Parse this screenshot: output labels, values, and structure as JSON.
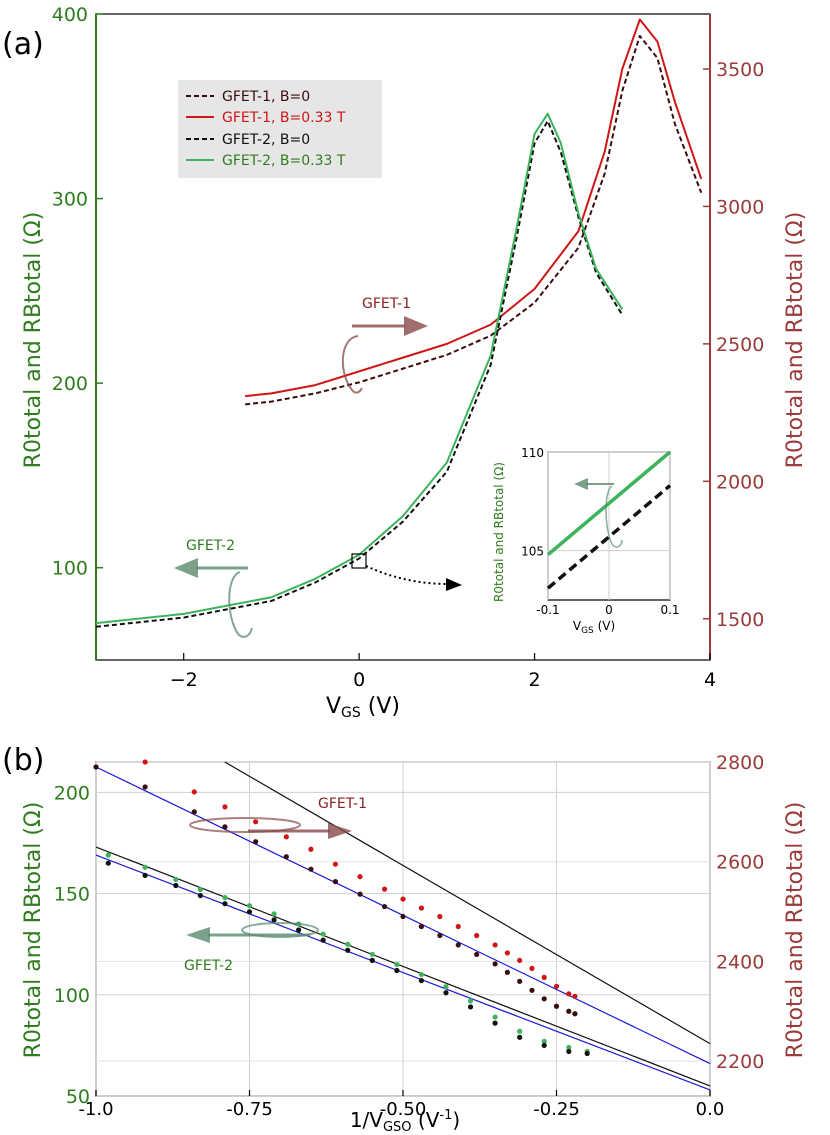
{
  "colors": {
    "green_axis": "#2f7d1f",
    "maroon_axis": "#9b3b3b",
    "gfet1_b0": "#3a0d0d",
    "gfet1_b033": "#d01515",
    "gfet2_b0": "#111111",
    "gfet2_b033": "#3cb35c",
    "fit_black": "#111111",
    "fit_blue": "#1a1ad6",
    "arrow_maroon": "#8a4a4a",
    "arrow_green": "#5a8a6e"
  },
  "chart_data": [
    {
      "panel_label": "(a)",
      "type": "line",
      "xlabel_main": "V",
      "xlabel_sub": "GS",
      "xlabel_unit": " (V)",
      "xlim": [
        -3,
        4
      ],
      "xticks": [
        -2,
        0,
        2,
        4
      ],
      "xtick_labels": [
        "−2",
        "0",
        "2",
        "4"
      ],
      "y_left": {
        "lim": [
          50,
          400
        ],
        "ticks": [
          100,
          200,
          300,
          400
        ],
        "tick_labels": [
          "100",
          "200",
          "300",
          "400"
        ]
      },
      "y_right": {
        "lim": [
          1350,
          3700
        ],
        "ticks": [
          1500,
          2000,
          2500,
          3000,
          3500
        ],
        "tick_labels": [
          "1500",
          "2000",
          "2500",
          "3000",
          "3500"
        ]
      },
      "ylabel_left": "R0total and RBtotal (Ω)",
      "ylabel_right": "R0total and RBtotal (Ω)",
      "legend": [
        {
          "label": "GFET-1,  B=0",
          "style": "dashed",
          "color": "#3a0d0d"
        },
        {
          "label": "GFET-1,  B=0.33 T",
          "style": "solid",
          "color": "#d01515"
        },
        {
          "label": "GFET-2,  B=0",
          "style": "dashed",
          "color": "#111111"
        },
        {
          "label": "GFET-2,  B=0.33 T",
          "style": "solid",
          "color": "#3cb35c"
        }
      ],
      "series": [
        {
          "name": "GFET-1, B=0",
          "axis": "right",
          "style": "dashed",
          "color": "#3a0d0d",
          "x": [
            -1.3,
            -1.0,
            -0.5,
            0,
            0.5,
            1.0,
            1.5,
            2.0,
            2.5,
            2.8,
            3.0,
            3.2,
            3.4,
            3.6,
            3.9
          ],
          "y": [
            2280,
            2290,
            2320,
            2360,
            2410,
            2460,
            2530,
            2650,
            2850,
            3120,
            3420,
            3620,
            3540,
            3300,
            3050
          ]
        },
        {
          "name": "GFET-1, B=0.33 T",
          "axis": "right",
          "style": "solid",
          "color": "#d01515",
          "x": [
            -1.3,
            -1.0,
            -0.5,
            0,
            0.5,
            1.0,
            1.5,
            2.0,
            2.5,
            2.8,
            3.0,
            3.2,
            3.4,
            3.6,
            3.9
          ],
          "y": [
            2310,
            2320,
            2350,
            2400,
            2450,
            2500,
            2570,
            2700,
            2910,
            3200,
            3500,
            3680,
            3600,
            3380,
            3100
          ]
        },
        {
          "name": "GFET-2, B=0",
          "axis": "left",
          "style": "dashed",
          "color": "#111111",
          "x": [
            -3.0,
            -2.0,
            -1.0,
            -0.5,
            0,
            0.5,
            1.0,
            1.5,
            1.8,
            2.0,
            2.15,
            2.3,
            2.5,
            2.7,
            3.0
          ],
          "y": [
            68,
            73,
            82,
            92,
            105,
            125,
            152,
            210,
            280,
            330,
            342,
            325,
            290,
            260,
            237
          ]
        },
        {
          "name": "GFET-2, B=0.33 T",
          "axis": "left",
          "style": "solid",
          "color": "#3cb35c",
          "x": [
            -3.0,
            -2.0,
            -1.0,
            -0.5,
            0,
            0.5,
            1.0,
            1.5,
            1.8,
            2.0,
            2.15,
            2.3,
            2.5,
            2.7,
            3.0
          ],
          "y": [
            70,
            75,
            84,
            94,
            107,
            128,
            157,
            215,
            285,
            335,
            346,
            330,
            292,
            262,
            240
          ]
        }
      ],
      "annotations": {
        "gfet1_label": "GFET-1",
        "gfet2_label": "GFET-2"
      },
      "inset": {
        "xlim": [
          -0.1,
          0.1
        ],
        "xticks": [
          -0.1,
          0,
          0.1
        ],
        "xtick_labels": [
          "-0.1",
          "0",
          "0.1"
        ],
        "ylim": [
          102.5,
          110
        ],
        "yticks": [
          105,
          110
        ],
        "ytick_labels": [
          "105",
          "110"
        ],
        "xlabel_main": "V",
        "xlabel_sub": "GS",
        "xlabel_unit": " (V)",
        "ylabel": "R0total and RBtotal (Ω)",
        "series": [
          {
            "name": "GFET-2, B=0.33 T",
            "style": "solid",
            "color": "#3cb35c",
            "x": [
              -0.1,
              0.1
            ],
            "y": [
              104.8,
              110.0
            ]
          },
          {
            "name": "GFET-2, B=0",
            "style": "dashed",
            "color": "#111111",
            "x": [
              -0.1,
              0.1
            ],
            "y": [
              103.1,
              108.3
            ]
          }
        ]
      }
    },
    {
      "panel_label": "(b)",
      "type": "scatter",
      "xlabel_main": "1/V",
      "xlabel_sub": "GSO",
      "xlabel_unit": " (V",
      "xlabel_sup": "-1",
      "xlabel_end": ")",
      "xlim": [
        -1.0,
        0.0
      ],
      "xticks": [
        -1.0,
        -0.75,
        -0.5,
        -0.25,
        0.0
      ],
      "xtick_labels": [
        "-1.0",
        "-0.75",
        "-0.50",
        "-0.25",
        "0.0"
      ],
      "y_left": {
        "lim": [
          50,
          215
        ],
        "ticks": [
          50,
          100,
          150,
          200
        ],
        "tick_labels": [
          "50",
          "100",
          "150",
          "200"
        ]
      },
      "y_right": {
        "lim": [
          2130,
          2800
        ],
        "ticks": [
          2200,
          2400,
          2600,
          2800
        ],
        "tick_labels": [
          "2200",
          "2400",
          "2600",
          "2800"
        ]
      },
      "ylabel_left": "R0total and RBtotal (Ω)",
      "ylabel_right": "R0total and RBtotal (Ω)",
      "annotations": {
        "gfet1_label": "GFET-1",
        "gfet2_label": "GFET-2"
      },
      "series": [
        {
          "name": "GFET-1, B=0.33 T",
          "axis": "right",
          "marker": "dot",
          "color": "#d01515",
          "x": [
            -0.92,
            -0.84,
            -0.79,
            -0.74,
            -0.69,
            -0.65,
            -0.61,
            -0.57,
            -0.53,
            -0.5,
            -0.47,
            -0.44,
            -0.41,
            -0.38,
            -0.35,
            -0.33,
            -0.31,
            -0.29,
            -0.27,
            -0.25,
            -0.23,
            -0.22
          ],
          "y": [
            2800,
            2740,
            2710,
            2680,
            2650,
            2625,
            2595,
            2570,
            2545,
            2525,
            2507,
            2490,
            2470,
            2452,
            2433,
            2417,
            2402,
            2386,
            2368,
            2350,
            2335,
            2330
          ]
        },
        {
          "name": "GFET-1, B=0",
          "axis": "right",
          "marker": "dot",
          "color": "#3a0d0d",
          "x": [
            -1.0,
            -0.92,
            -0.84,
            -0.79,
            -0.74,
            -0.69,
            -0.65,
            -0.61,
            -0.57,
            -0.53,
            -0.5,
            -0.47,
            -0.44,
            -0.41,
            -0.38,
            -0.35,
            -0.33,
            -0.31,
            -0.29,
            -0.27,
            -0.25,
            -0.23,
            -0.22
          ],
          "y": [
            2790,
            2750,
            2700,
            2670,
            2640,
            2610,
            2585,
            2560,
            2535,
            2510,
            2490,
            2470,
            2452,
            2433,
            2414,
            2395,
            2378,
            2360,
            2342,
            2325,
            2310,
            2300,
            2295
          ]
        },
        {
          "name": "GFET-2, B=0.33 T",
          "axis": "left",
          "marker": "dot",
          "color": "#3cb35c",
          "x": [
            -0.98,
            -0.92,
            -0.87,
            -0.83,
            -0.79,
            -0.75,
            -0.71,
            -0.67,
            -0.63,
            -0.59,
            -0.55,
            -0.51,
            -0.47,
            -0.43,
            -0.39,
            -0.35,
            -0.31,
            -0.27,
            -0.23,
            -0.2
          ],
          "y": [
            169,
            163,
            157,
            152,
            148,
            144,
            140,
            135,
            130,
            125,
            120,
            115,
            110,
            104,
            97,
            89,
            82,
            77,
            74,
            72
          ]
        },
        {
          "name": "GFET-2, B=0",
          "axis": "left",
          "marker": "dot",
          "color": "#111111",
          "x": [
            -0.98,
            -0.92,
            -0.87,
            -0.83,
            -0.79,
            -0.75,
            -0.71,
            -0.67,
            -0.63,
            -0.59,
            -0.55,
            -0.51,
            -0.47,
            -0.43,
            -0.39,
            -0.35,
            -0.31,
            -0.27,
            -0.23,
            -0.2
          ],
          "y": [
            165,
            159,
            154,
            149,
            145,
            141,
            137,
            132,
            127,
            122,
            117,
            112,
            107,
            101,
            94,
            86,
            79,
            75,
            72,
            71
          ]
        }
      ],
      "fits": [
        {
          "name": "fit GFET-1 B=0.33 T",
          "axis": "right",
          "color": "#111111",
          "x": [
            -1.0,
            0.0
          ],
          "y": [
            2950,
            2235
          ]
        },
        {
          "name": "fit GFET-1 B=0",
          "axis": "right",
          "color": "#1a1ad6",
          "x": [
            -1.0,
            0.0
          ],
          "y": [
            2790,
            2195
          ]
        },
        {
          "name": "fit GFET-2 B=0.33 T",
          "axis": "left",
          "color": "#111111",
          "x": [
            -1.0,
            0.0
          ],
          "y": [
            173,
            55
          ]
        },
        {
          "name": "fit GFET-2 B=0",
          "axis": "left",
          "color": "#1a1ad6",
          "x": [
            -1.0,
            0.0
          ],
          "y": [
            169,
            53
          ]
        }
      ]
    }
  ]
}
